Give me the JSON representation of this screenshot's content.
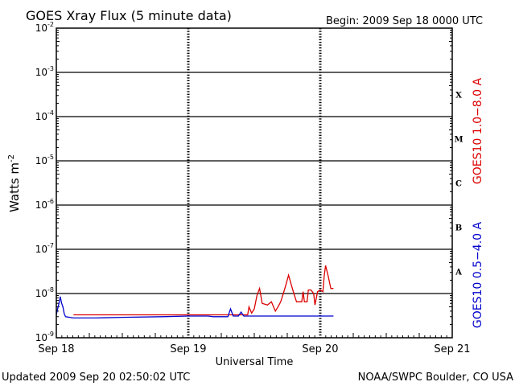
{
  "chart_data": {
    "type": "line",
    "title": "GOES Xray Flux (5 minute data)",
    "begin_label": "Begin:  2009 Sep 18 0000 UTC",
    "xlabel": "Universal Time",
    "ylabel_base": "Watts m",
    "ylabel_exp": "-2",
    "footer_left": "Updated 2009 Sep 20 02:50:02 UTC",
    "footer_right": "NOAA/SWPC Boulder, CO USA",
    "y_scale": "log",
    "ylim_exp": [
      -9,
      -2
    ],
    "y_ticks": [
      {
        "base": "10",
        "exp": "-2",
        "e": -2
      },
      {
        "base": "10",
        "exp": "-3",
        "e": -3
      },
      {
        "base": "10",
        "exp": "-4",
        "e": -4
      },
      {
        "base": "10",
        "exp": "-5",
        "e": -5
      },
      {
        "base": "10",
        "exp": "-6",
        "e": -6
      },
      {
        "base": "10",
        "exp": "-7",
        "e": -7
      },
      {
        "base": "10",
        "exp": "-8",
        "e": -8
      },
      {
        "base": "10",
        "exp": "-9",
        "e": -9
      }
    ],
    "xlim_days": [
      0,
      3
    ],
    "x_ticks": [
      {
        "label": "Sep 18",
        "day": 0
      },
      {
        "label": "Sep 19",
        "day": 1
      },
      {
        "label": "Sep 20",
        "day": 2
      },
      {
        "label": "Sep 21",
        "day": 3
      }
    ],
    "flare_classes": [
      {
        "label": "X",
        "e": -3.5
      },
      {
        "label": "M",
        "e": -4.5
      },
      {
        "label": "C",
        "e": -5.5
      },
      {
        "label": "B",
        "e": -6.5
      },
      {
        "label": "A",
        "e": -7.5
      }
    ],
    "legend_right": [
      {
        "label": "GOES10 1.0−8.0 A",
        "color": "#dd0000"
      },
      {
        "label": "GOES10 0.5−4.0 A",
        "color": "#0000cc"
      }
    ],
    "grid": "horizontal lines at each decade",
    "series": [
      {
        "name": "GOES10 1.0−8.0 A",
        "color": "#dd0000",
        "points": [
          [
            0.13,
            3.3e-09
          ],
          [
            0.5,
            3.3e-09
          ],
          [
            1.0,
            3.3e-09
          ],
          [
            1.15,
            3.3e-09
          ],
          [
            1.19,
            3.3e-09
          ],
          [
            1.45,
            3.3e-09
          ],
          [
            1.46,
            5e-09
          ],
          [
            1.48,
            3.6e-09
          ],
          [
            1.5,
            4.5e-09
          ],
          [
            1.52,
            9e-09
          ],
          [
            1.54,
            1.3e-08
          ],
          [
            1.56,
            6e-09
          ],
          [
            1.6,
            5.5e-09
          ],
          [
            1.63,
            6.5e-09
          ],
          [
            1.66,
            4e-09
          ],
          [
            1.68,
            5e-09
          ],
          [
            1.7,
            6.5e-09
          ],
          [
            1.72,
            1e-08
          ],
          [
            1.74,
            1.6e-08
          ],
          [
            1.76,
            2.6e-08
          ],
          [
            1.78,
            1.6e-08
          ],
          [
            1.8,
            1e-08
          ],
          [
            1.82,
            6.5e-09
          ],
          [
            1.86,
            6.5e-09
          ],
          [
            1.87,
            1.1e-08
          ],
          [
            1.88,
            6.5e-09
          ],
          [
            1.9,
            6.5e-09
          ],
          [
            1.91,
            1.2e-08
          ],
          [
            1.93,
            1.2e-08
          ],
          [
            1.95,
            1e-08
          ],
          [
            1.96,
            5.5e-09
          ],
          [
            1.98,
            1.1e-08
          ],
          [
            2.0,
            1.2e-08
          ],
          [
            2.02,
            1.1e-08
          ],
          [
            2.03,
            2.5e-08
          ],
          [
            2.04,
            4.3e-08
          ],
          [
            2.06,
            2.5e-08
          ],
          [
            2.08,
            1.3e-08
          ],
          [
            2.1,
            1.3e-08
          ]
        ]
      },
      {
        "name": "GOES10 0.5−4.0 A",
        "color": "#0000cc",
        "points": [
          [
            0.0,
            3.3e-09
          ],
          [
            0.01,
            4.5e-09
          ],
          [
            0.02,
            6e-09
          ],
          [
            0.03,
            8.5e-09
          ],
          [
            0.04,
            6e-09
          ],
          [
            0.05,
            5e-09
          ],
          [
            0.06,
            3.5e-09
          ],
          [
            0.07,
            3e-09
          ],
          [
            0.13,
            2.8e-09
          ],
          [
            0.3,
            2.8e-09
          ],
          [
            0.5,
            2.9e-09
          ],
          [
            0.8,
            3e-09
          ],
          [
            1.0,
            3.1e-09
          ],
          [
            1.15,
            3.1e-09
          ],
          [
            1.19,
            3e-09
          ],
          [
            1.3,
            3e-09
          ],
          [
            1.32,
            4.5e-09
          ],
          [
            1.34,
            3.1e-09
          ],
          [
            1.38,
            3.1e-09
          ],
          [
            1.4,
            3.8e-09
          ],
          [
            1.42,
            3.1e-09
          ],
          [
            1.6,
            3.1e-09
          ],
          [
            1.8,
            3.1e-09
          ],
          [
            2.0,
            3.1e-09
          ],
          [
            2.1,
            3.1e-09
          ]
        ]
      }
    ]
  }
}
